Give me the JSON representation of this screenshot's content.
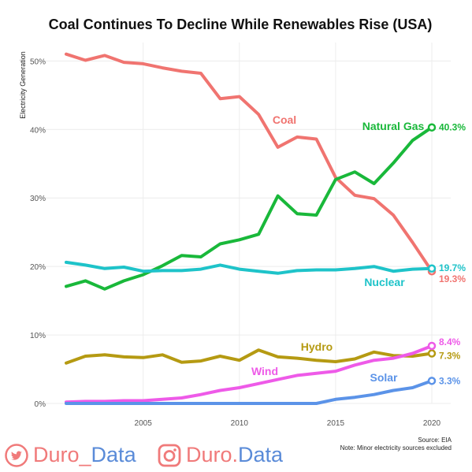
{
  "chart_data": {
    "type": "line",
    "title": "Coal Continues To Decline While Renewables Rise (USA)",
    "ylabel": "Electricity Generation",
    "xlabel": "",
    "xlim": [
      2001,
      2020
    ],
    "ylim": [
      0,
      52
    ],
    "x_ticks": [
      2005,
      2010,
      2015,
      2020
    ],
    "y_ticks": [
      0,
      10,
      20,
      30,
      40,
      50
    ],
    "y_tick_labels": [
      "0%",
      "10%",
      "20%",
      "30%",
      "40%",
      "50%"
    ],
    "grid": true,
    "x": [
      2001,
      2002,
      2003,
      2004,
      2005,
      2006,
      2007,
      2008,
      2009,
      2010,
      2011,
      2012,
      2013,
      2014,
      2015,
      2016,
      2017,
      2018,
      2019,
      2020
    ],
    "series": [
      {
        "name": "Coal",
        "color": "#f07470",
        "end_label": "19.3%",
        "values": [
          51.0,
          50.1,
          50.8,
          49.8,
          49.6,
          49.0,
          48.5,
          48.2,
          44.5,
          44.8,
          42.2,
          37.4,
          38.9,
          38.6,
          33.0,
          30.4,
          29.9,
          27.5,
          23.5,
          19.3
        ]
      },
      {
        "name": "Natural Gas",
        "color": "#19b83a",
        "end_label": "40.3%",
        "values": [
          17.1,
          17.9,
          16.7,
          17.9,
          18.8,
          20.1,
          21.6,
          21.4,
          23.3,
          23.9,
          24.7,
          30.3,
          27.7,
          27.5,
          32.7,
          33.8,
          32.1,
          35.1,
          38.4,
          40.3
        ]
      },
      {
        "name": "Nuclear",
        "color": "#1ec3c9",
        "end_label": "19.7%",
        "values": [
          20.6,
          20.2,
          19.7,
          19.9,
          19.3,
          19.4,
          19.4,
          19.6,
          20.2,
          19.6,
          19.3,
          19.0,
          19.4,
          19.5,
          19.5,
          19.7,
          20.0,
          19.3,
          19.6,
          19.7
        ]
      },
      {
        "name": "Hydro",
        "color": "#b59a12",
        "end_label": "7.3%",
        "values": [
          5.9,
          6.9,
          7.1,
          6.8,
          6.7,
          7.1,
          6.0,
          6.2,
          6.9,
          6.3,
          7.8,
          6.8,
          6.6,
          6.3,
          6.1,
          6.5,
          7.5,
          7.0,
          6.9,
          7.3
        ]
      },
      {
        "name": "Wind",
        "color": "#ee5ae8",
        "end_label": "8.4%",
        "values": [
          0.2,
          0.3,
          0.3,
          0.4,
          0.4,
          0.6,
          0.8,
          1.3,
          1.9,
          2.3,
          2.9,
          3.5,
          4.1,
          4.4,
          4.7,
          5.6,
          6.3,
          6.6,
          7.3,
          8.4
        ]
      },
      {
        "name": "Solar",
        "color": "#5b93e8",
        "end_label": "3.3%",
        "values": [
          0.0,
          0.0,
          0.0,
          0.0,
          0.0,
          0.0,
          0.0,
          0.0,
          0.0,
          0.0,
          0.0,
          0.0,
          0.0,
          0.0,
          0.6,
          0.9,
          1.3,
          1.9,
          2.3,
          3.3
        ]
      }
    ],
    "annotations": [
      "Source: EIA",
      "Note: Minor electricity sources excluded"
    ]
  },
  "footer": {
    "twitter_handle_a": "Duro_",
    "twitter_handle_b": "Data",
    "instagram_handle_a": "Duro.",
    "instagram_handle_b": "Data",
    "twitter_icon": "twitter-icon",
    "instagram_icon": "instagram-icon"
  }
}
